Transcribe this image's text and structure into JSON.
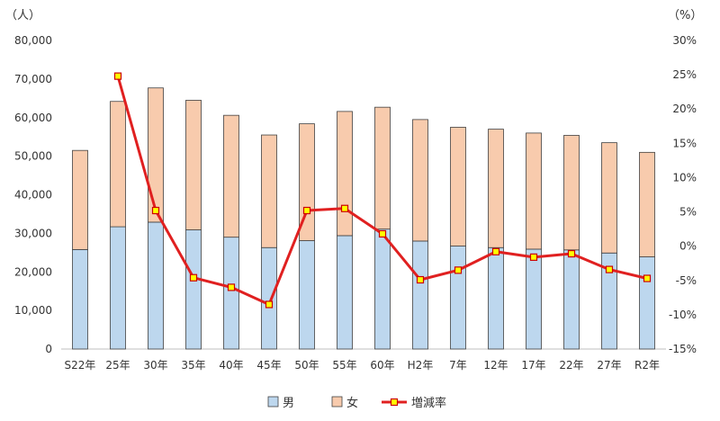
{
  "chart_data": {
    "type": "bar",
    "stacked": true,
    "categories": [
      "S22年",
      "25年",
      "30年",
      "35年",
      "40年",
      "45年",
      "50年",
      "55年",
      "60年",
      "H2年",
      "7年",
      "12年",
      "17年",
      "22年",
      "27年",
      "R2年"
    ],
    "series": [
      {
        "name": "男",
        "type": "bar",
        "axis": "left",
        "color": "#bdd7ee",
        "values": [
          25800,
          31700,
          32900,
          30900,
          29000,
          26300,
          28100,
          29400,
          31100,
          28000,
          26700,
          26300,
          25900,
          25700,
          24900,
          23900
        ]
      },
      {
        "name": "女",
        "type": "bar",
        "axis": "left",
        "color": "#f8cbad",
        "values": [
          25700,
          32500,
          34800,
          33600,
          31600,
          29200,
          30300,
          32200,
          31600,
          31500,
          30800,
          30700,
          30100,
          29700,
          28600,
          27100
        ]
      },
      {
        "name": "増減率",
        "type": "line",
        "axis": "right",
        "color": "#e02020",
        "marker_fill": "#ffff00",
        "marker_edge": "#cc0000",
        "values": [
          null,
          24.8,
          5.2,
          -4.6,
          -6.0,
          -8.5,
          5.2,
          5.5,
          1.8,
          -4.9,
          -3.5,
          -0.8,
          -1.6,
          -1.1,
          -3.4,
          -4.7
        ]
      }
    ],
    "y_left": {
      "unit": "（人）",
      "ylim": [
        0,
        80000
      ],
      "ticks": [
        0,
        10000,
        20000,
        30000,
        40000,
        50000,
        60000,
        70000,
        80000
      ],
      "tick_labels": [
        "0",
        "10,000",
        "20,000",
        "30,000",
        "40,000",
        "50,000",
        "60,000",
        "70,000",
        "80,000"
      ]
    },
    "y_right": {
      "unit": "（%）",
      "ylim": [
        -15,
        30
      ],
      "ticks": [
        -15,
        -10,
        -5,
        0,
        5,
        10,
        15,
        20,
        25,
        30
      ],
      "tick_labels": [
        "-15%",
        "-10%",
        "-5%",
        "0%",
        "5%",
        "10%",
        "15%",
        "20%",
        "25%",
        "30%"
      ]
    },
    "grid": false,
    "legend_position": "bottom",
    "bar_edge_color": "#404040",
    "axis_color": "#bfbfbf"
  }
}
